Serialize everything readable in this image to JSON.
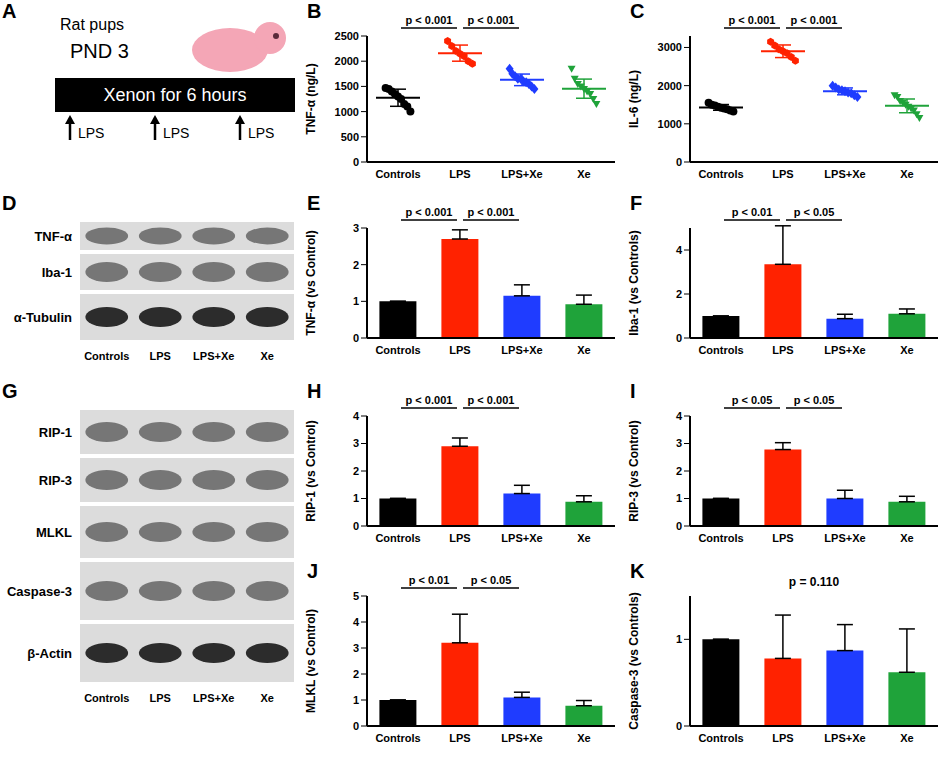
{
  "chart_data": [
    {
      "panel": "B",
      "type": "scatter",
      "y_label": "TNF-α (ng/L)",
      "categories": [
        "Controls",
        "LPS",
        "LPS+Xe",
        "Xe"
      ],
      "colors": [
        "#000000",
        "#ff2200",
        "#1f3cff",
        "#1fa33a"
      ],
      "markers": [
        "circle",
        "hexagon",
        "diamond",
        "triangle-down"
      ],
      "points": [
        [
          1470,
          1450,
          1400,
          1350,
          1300,
          1250,
          1150,
          1100,
          1000
        ],
        [
          2400,
          2300,
          2200,
          2150,
          2100,
          2000,
          1950
        ],
        [
          1850,
          1750,
          1700,
          1650,
          1650,
          1600,
          1580,
          1550,
          1500,
          1450
        ],
        [
          1850,
          1650,
          1550,
          1500,
          1450,
          1400,
          1350,
          1250,
          1150
        ]
      ],
      "mean": [
        1275,
        2160,
        1630,
        1455
      ],
      "sd": [
        170,
        160,
        115,
        190
      ],
      "ylim": [
        0,
        2500
      ],
      "yticks": [
        0,
        500,
        1000,
        1500,
        2000,
        2500
      ],
      "annotations": [
        {
          "between": [
            "Controls",
            "LPS"
          ],
          "text": "p < 0.001"
        },
        {
          "between": [
            "LPS",
            "LPS+Xe"
          ],
          "text": "p < 0.001"
        }
      ]
    },
    {
      "panel": "C",
      "type": "scatter",
      "y_label": "IL-6 (ng/L)",
      "categories": [
        "Controls",
        "LPS",
        "LPS+Xe",
        "Xe"
      ],
      "colors": [
        "#000000",
        "#ff2200",
        "#1f3cff",
        "#1fa33a"
      ],
      "markers": [
        "circle",
        "hexagon",
        "diamond",
        "triangle-down"
      ],
      "points": [
        [
          1550,
          1500,
          1480,
          1450,
          1420,
          1400,
          1380,
          1350,
          1320
        ],
        [
          3150,
          3050,
          2950,
          2900,
          2850,
          2750,
          2650
        ],
        [
          2000,
          1950,
          1900,
          1880,
          1850,
          1820,
          1800,
          1750,
          1700
        ],
        [
          1750,
          1700,
          1600,
          1550,
          1500,
          1450,
          1400,
          1350,
          1250,
          1150
        ]
      ],
      "mean": [
        1430,
        2900,
        1850,
        1470
      ],
      "sd": [
        75,
        165,
        90,
        180
      ],
      "ylim": [
        0,
        3300
      ],
      "yticks": [
        0,
        1000,
        2000,
        3000
      ],
      "annotations": [
        {
          "between": [
            "Controls",
            "LPS"
          ],
          "text": "p < 0.001"
        },
        {
          "between": [
            "LPS",
            "LPS+Xe"
          ],
          "text": "p < 0.001"
        }
      ]
    },
    {
      "panel": "E",
      "type": "bar",
      "y_label": "TNF-α (vs Control)",
      "categories": [
        "Controls",
        "LPS",
        "LPS+Xe",
        "Xe"
      ],
      "colors": [
        "#000000",
        "#ff2200",
        "#1f3cff",
        "#1fa33a"
      ],
      "values": [
        1,
        2.7,
        1.15,
        0.92
      ],
      "errors": [
        0,
        0.25,
        0.3,
        0.25
      ],
      "ylim": [
        0,
        3
      ],
      "yticks": [
        0,
        1,
        2,
        3
      ],
      "annotations": [
        {
          "between": [
            "Controls",
            "LPS"
          ],
          "text": "p < 0.001"
        },
        {
          "between": [
            "LPS",
            "LPS+Xe"
          ],
          "text": "p < 0.001"
        }
      ]
    },
    {
      "panel": "F",
      "type": "bar",
      "y_label": "Iba-1 (vs Controls)",
      "categories": [
        "Controls",
        "LPS",
        "LPS+Xe",
        "Xe"
      ],
      "colors": [
        "#000000",
        "#ff2200",
        "#1f3cff",
        "#1fa33a"
      ],
      "values": [
        1,
        3.35,
        0.88,
        1.1
      ],
      "errors": [
        0,
        1.75,
        0.2,
        0.22
      ],
      "ylim": [
        0,
        5
      ],
      "yticks": [
        0,
        2,
        4
      ],
      "annotations": [
        {
          "between": [
            "Controls",
            "LPS"
          ],
          "text": "p < 0.01"
        },
        {
          "between": [
            "LPS",
            "LPS+Xe"
          ],
          "text": "p < 0.05"
        }
      ]
    },
    {
      "panel": "H",
      "type": "bar",
      "y_label": "RIP-1 (vs Control)",
      "categories": [
        "Controls",
        "LPS",
        "LPS+Xe",
        "Xe"
      ],
      "colors": [
        "#000000",
        "#ff2200",
        "#1f3cff",
        "#1fa33a"
      ],
      "values": [
        1,
        2.9,
        1.18,
        0.88
      ],
      "errors": [
        0,
        0.3,
        0.3,
        0.22
      ],
      "ylim": [
        0,
        4
      ],
      "yticks": [
        0,
        1,
        2,
        3,
        4
      ],
      "annotations": [
        {
          "between": [
            "Controls",
            "LPS"
          ],
          "text": "p < 0.001"
        },
        {
          "between": [
            "LPS",
            "LPS+Xe"
          ],
          "text": "p < 0.001"
        }
      ]
    },
    {
      "panel": "I",
      "type": "bar",
      "y_label": "RIP-3 (vs Control)",
      "categories": [
        "Controls",
        "LPS",
        "LPS+Xe",
        "Xe"
      ],
      "colors": [
        "#000000",
        "#ff2200",
        "#1f3cff",
        "#1fa33a"
      ],
      "values": [
        1,
        2.78,
        1.0,
        0.88
      ],
      "errors": [
        0,
        0.25,
        0.3,
        0.2
      ],
      "ylim": [
        0,
        4
      ],
      "yticks": [
        0,
        1,
        2,
        3,
        4
      ],
      "annotations": [
        {
          "between": [
            "Controls",
            "LPS"
          ],
          "text": "p < 0.05"
        },
        {
          "between": [
            "LPS",
            "LPS+Xe"
          ],
          "text": "p < 0.05"
        }
      ]
    },
    {
      "panel": "J",
      "type": "bar",
      "y_label": "MLKL (vs Control)",
      "categories": [
        "Controls",
        "LPS",
        "LPS+Xe",
        "Xe"
      ],
      "colors": [
        "#000000",
        "#ff2200",
        "#1f3cff",
        "#1fa33a"
      ],
      "values": [
        1,
        3.2,
        1.1,
        0.78
      ],
      "errors": [
        0,
        1.1,
        0.2,
        0.2
      ],
      "ylim": [
        0,
        5
      ],
      "yticks": [
        0,
        1,
        2,
        3,
        4,
        5
      ],
      "annotations": [
        {
          "between": [
            "Controls",
            "LPS"
          ],
          "text": "p < 0.01"
        },
        {
          "between": [
            "LPS",
            "LPS+Xe"
          ],
          "text": "p < 0.05"
        }
      ]
    },
    {
      "panel": "K",
      "type": "bar",
      "y_label": "Caspase-3 (vs Controls)",
      "categories": [
        "Controls",
        "LPS",
        "LPS+Xe",
        "Xe"
      ],
      "colors": [
        "#000000",
        "#ff2200",
        "#1f3cff",
        "#1fa33a"
      ],
      "values": [
        1,
        0.78,
        0.87,
        0.62
      ],
      "errors": [
        0,
        0.5,
        0.3,
        0.5
      ],
      "ylim": [
        0,
        1.5
      ],
      "yticks": [
        0,
        1
      ],
      "annotations": [
        {
          "text": "p = 0.110"
        }
      ]
    }
  ],
  "panels": {
    "A": {
      "letter": "A",
      "lines": [
        "Rat pups",
        "PND 3"
      ],
      "bar": "Xenon for 6 hours",
      "arrows": [
        "LPS",
        "LPS",
        "LPS"
      ]
    },
    "D": {
      "letter": "D",
      "rows": [
        "TNF-α",
        "Iba-1",
        "α-Tubulin"
      ],
      "lanes": [
        "Controls",
        "LPS",
        "LPS+Xe",
        "Xe"
      ]
    },
    "G": {
      "letter": "G",
      "rows": [
        "RIP-1",
        "RIP-3",
        "MLKL",
        "Caspase-3",
        "β-Actin"
      ],
      "lanes": [
        "Controls",
        "LPS",
        "LPS+Xe",
        "Xe"
      ]
    }
  }
}
